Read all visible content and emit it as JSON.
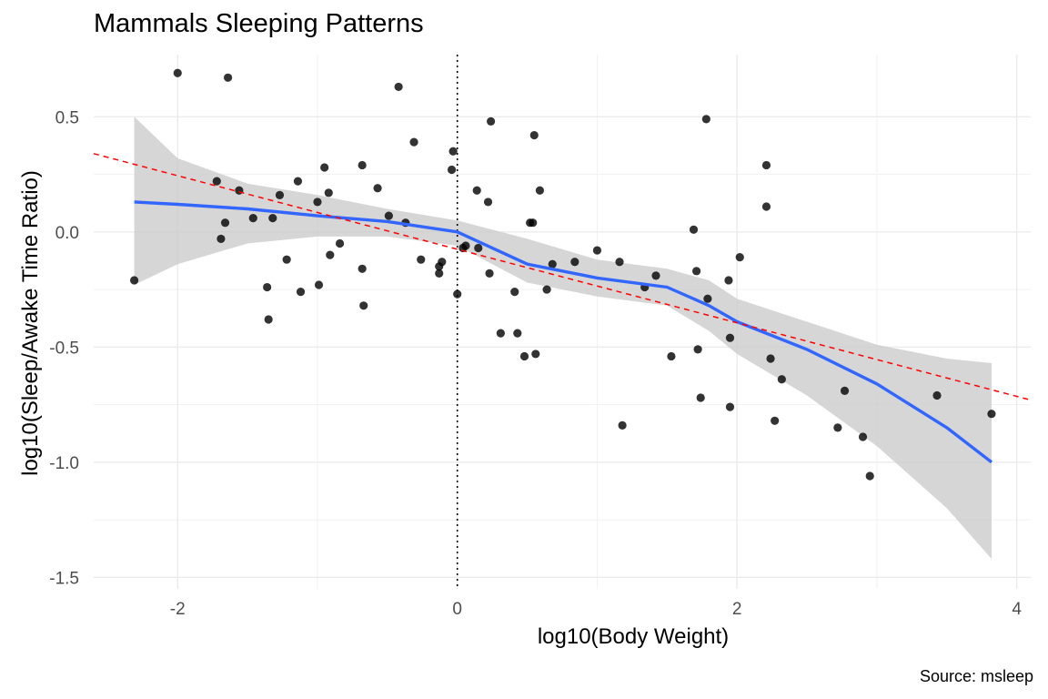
{
  "chart_data": {
    "type": "scatter",
    "title": "Mammals Sleeping Patterns",
    "xlabel": "log10(Body Weight)",
    "ylabel": "log10(Sleep/Awake Time Ratio)",
    "caption": "Source: msleep",
    "xlim": [
      -2.6,
      4.1
    ],
    "ylim": [
      -1.55,
      0.77
    ],
    "x_ticks": [
      -2,
      0,
      2,
      4
    ],
    "x_tick_labels": [
      "-2",
      "0",
      "2",
      "4"
    ],
    "y_ticks": [
      -1.5,
      -1.0,
      -0.5,
      0.0,
      0.5
    ],
    "y_tick_labels": [
      "-1.5",
      "-1.0",
      "-0.5",
      "0.0",
      "0.5"
    ],
    "grid": true,
    "vline_x": 0,
    "colors": {
      "points": "#000000",
      "smooth": "#3366ff",
      "ribbon": "#cccccc",
      "linear_fit": "#ff0000",
      "vline": "#000000"
    },
    "points": [
      {
        "x": -2.31,
        "y": -0.21
      },
      {
        "x": -2.0,
        "y": 0.69
      },
      {
        "x": -1.64,
        "y": 0.67
      },
      {
        "x": -1.72,
        "y": 0.22
      },
      {
        "x": -1.69,
        "y": -0.03
      },
      {
        "x": -1.66,
        "y": 0.04
      },
      {
        "x": -1.56,
        "y": 0.18
      },
      {
        "x": -1.46,
        "y": 0.06
      },
      {
        "x": -1.36,
        "y": -0.24
      },
      {
        "x": -1.35,
        "y": -0.38
      },
      {
        "x": -1.32,
        "y": 0.06
      },
      {
        "x": -1.27,
        "y": 0.16
      },
      {
        "x": -1.22,
        "y": -0.12
      },
      {
        "x": -1.14,
        "y": 0.22
      },
      {
        "x": -1.12,
        "y": -0.26
      },
      {
        "x": -1.0,
        "y": 0.13
      },
      {
        "x": -0.99,
        "y": -0.23
      },
      {
        "x": -0.95,
        "y": 0.28
      },
      {
        "x": -0.92,
        "y": 0.17
      },
      {
        "x": -0.91,
        "y": -0.1
      },
      {
        "x": -0.84,
        "y": -0.05
      },
      {
        "x": -0.68,
        "y": 0.29
      },
      {
        "x": -0.68,
        "y": -0.16
      },
      {
        "x": -0.67,
        "y": -0.32
      },
      {
        "x": -0.57,
        "y": 0.19
      },
      {
        "x": -0.49,
        "y": 0.07
      },
      {
        "x": -0.42,
        "y": 0.63
      },
      {
        "x": -0.37,
        "y": 0.04
      },
      {
        "x": -0.31,
        "y": 0.39
      },
      {
        "x": -0.26,
        "y": -0.12
      },
      {
        "x": -0.13,
        "y": -0.15
      },
      {
        "x": -0.13,
        "y": -0.18
      },
      {
        "x": -0.11,
        "y": -0.13
      },
      {
        "x": -0.04,
        "y": 0.27
      },
      {
        "x": -0.03,
        "y": 0.35
      },
      {
        "x": 0.0,
        "y": -0.27
      },
      {
        "x": 0.04,
        "y": -0.07
      },
      {
        "x": 0.06,
        "y": -0.06
      },
      {
        "x": 0.14,
        "y": 0.18
      },
      {
        "x": 0.15,
        "y": -0.07
      },
      {
        "x": 0.22,
        "y": 0.13
      },
      {
        "x": 0.23,
        "y": -0.18
      },
      {
        "x": 0.24,
        "y": 0.48
      },
      {
        "x": 0.31,
        "y": -0.44
      },
      {
        "x": 0.41,
        "y": -0.26
      },
      {
        "x": 0.43,
        "y": -0.44
      },
      {
        "x": 0.48,
        "y": -0.54
      },
      {
        "x": 0.52,
        "y": 0.04
      },
      {
        "x": 0.54,
        "y": 0.04
      },
      {
        "x": 0.55,
        "y": 0.42
      },
      {
        "x": 0.56,
        "y": -0.53
      },
      {
        "x": 0.59,
        "y": 0.18
      },
      {
        "x": 0.64,
        "y": -0.25
      },
      {
        "x": 0.68,
        "y": -0.14
      },
      {
        "x": 0.84,
        "y": -0.13
      },
      {
        "x": 1.0,
        "y": -0.08
      },
      {
        "x": 1.16,
        "y": -0.13
      },
      {
        "x": 1.18,
        "y": -0.84
      },
      {
        "x": 1.34,
        "y": -0.24
      },
      {
        "x": 1.42,
        "y": -0.19
      },
      {
        "x": 1.53,
        "y": -0.54
      },
      {
        "x": 1.69,
        "y": 0.01
      },
      {
        "x": 1.71,
        "y": -0.17
      },
      {
        "x": 1.72,
        "y": -0.51
      },
      {
        "x": 1.74,
        "y": -0.72
      },
      {
        "x": 1.78,
        "y": 0.49
      },
      {
        "x": 1.79,
        "y": -0.29
      },
      {
        "x": 1.94,
        "y": -0.21
      },
      {
        "x": 1.95,
        "y": -0.46
      },
      {
        "x": 1.95,
        "y": -0.76
      },
      {
        "x": 2.02,
        "y": -0.11
      },
      {
        "x": 2.21,
        "y": 0.29
      },
      {
        "x": 2.21,
        "y": 0.11
      },
      {
        "x": 2.24,
        "y": -0.55
      },
      {
        "x": 2.27,
        "y": -0.82
      },
      {
        "x": 2.32,
        "y": -0.64
      },
      {
        "x": 2.72,
        "y": -0.85
      },
      {
        "x": 2.77,
        "y": -0.69
      },
      {
        "x": 2.9,
        "y": -0.89
      },
      {
        "x": 2.95,
        "y": -1.06
      },
      {
        "x": 3.43,
        "y": -0.71
      },
      {
        "x": 3.82,
        "y": -0.79
      }
    ],
    "smooth_line": {
      "x": [
        -2.31,
        -2.0,
        -1.5,
        -1.0,
        -0.5,
        0.0,
        0.5,
        1.0,
        1.5,
        1.8,
        2.0,
        2.5,
        3.0,
        3.5,
        3.82
      ],
      "y": [
        0.13,
        0.12,
        0.1,
        0.07,
        0.045,
        0.0,
        -0.14,
        -0.2,
        -0.24,
        -0.32,
        -0.39,
        -0.51,
        -0.66,
        -0.85,
        -1.0
      ],
      "ci_upper": [
        0.5,
        0.32,
        0.21,
        0.16,
        0.1,
        0.05,
        -0.03,
        -0.12,
        -0.16,
        -0.21,
        -0.29,
        -0.39,
        -0.49,
        -0.55,
        -0.57
      ],
      "ci_lower": [
        -0.23,
        -0.14,
        -0.05,
        -0.02,
        -0.02,
        -0.06,
        -0.22,
        -0.28,
        -0.32,
        -0.43,
        -0.53,
        -0.71,
        -0.93,
        -1.2,
        -1.42
      ]
    },
    "linear_fit": {
      "x": [
        -2.6,
        4.1
      ],
      "y": [
        0.34,
        -0.73
      ]
    }
  }
}
